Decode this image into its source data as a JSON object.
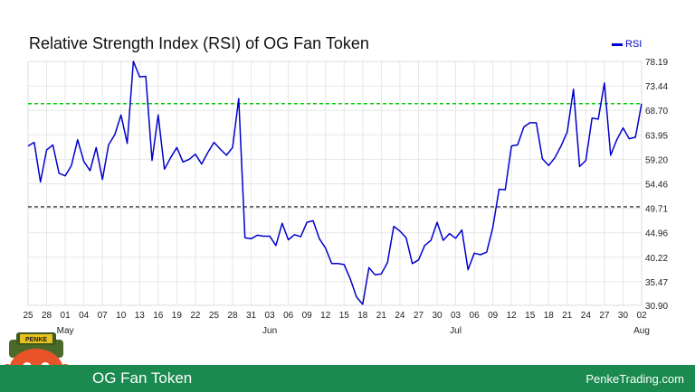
{
  "chart_data": {
    "type": "line",
    "title": "Relative Strength Index (RSI) of OG Fan Token",
    "legend": [
      "RSI"
    ],
    "legend_position": "top-right",
    "grid": true,
    "y_axis_position": "right",
    "ylim": [
      30.9,
      78.19
    ],
    "yticks": [
      "78.19",
      "73.44",
      "68.70",
      "63.95",
      "59.20",
      "54.46",
      "49.71",
      "44.96",
      "40.22",
      "35.47",
      "30.90"
    ],
    "xticks": [
      "25",
      "28",
      "01",
      "04",
      "07",
      "10",
      "13",
      "16",
      "19",
      "22",
      "25",
      "28",
      "31",
      "03",
      "06",
      "09",
      "12",
      "15",
      "18",
      "21",
      "24",
      "27",
      "30",
      "03",
      "06",
      "09",
      "12",
      "15",
      "18",
      "21",
      "24",
      "27",
      "30",
      "02"
    ],
    "month_labels": [
      {
        "label": "May",
        "tick_index": 2
      },
      {
        "label": "Jun",
        "tick_index": 13
      },
      {
        "label": "Jul",
        "tick_index": 23
      },
      {
        "label": "Aug",
        "tick_index": 33
      }
    ],
    "reference_lines": [
      {
        "value": 70,
        "color": "#00cc00"
      },
      {
        "value": 50,
        "color": "#333333"
      }
    ],
    "series": [
      {
        "name": "RSI",
        "color": "#0000cc",
        "values": [
          61.8,
          62.5,
          54.8,
          61,
          62,
          56.5,
          56,
          58,
          63,
          58.8,
          57,
          61.5,
          55.3,
          62,
          64,
          67.8,
          62.3,
          78.2,
          75.2,
          75.3,
          59,
          67.8,
          57.3,
          59.5,
          61.5,
          58.7,
          59.2,
          60.2,
          58.3,
          60.5,
          62.5,
          61.2,
          60,
          61.5,
          71,
          44,
          43.8,
          44.5,
          44.3,
          44.3,
          42.5,
          46.8,
          43.6,
          44.6,
          44.2,
          47,
          47.3,
          43.8,
          42,
          39,
          39,
          38.8,
          36,
          32.5,
          31.1,
          38.2,
          36.8,
          37,
          39.2,
          46.2,
          45.3,
          44,
          39,
          39.7,
          42.5,
          43.5,
          47,
          43.5,
          44.8,
          43.9,
          45.5,
          37.8,
          41,
          40.7,
          41.2,
          46,
          53.4,
          53.3,
          61.8,
          62,
          65.5,
          66.3,
          66.3,
          59.3,
          58,
          59.5,
          61.8,
          64.5,
          72.8,
          57.8,
          59,
          67.2,
          67,
          74,
          60,
          63,
          65.3,
          63.2,
          63.5,
          70
        ]
      }
    ]
  },
  "footer": {
    "left": "OG Fan Token",
    "right": "PenkeTrading.com"
  },
  "mascot": {
    "hat_text": "PENKE"
  }
}
